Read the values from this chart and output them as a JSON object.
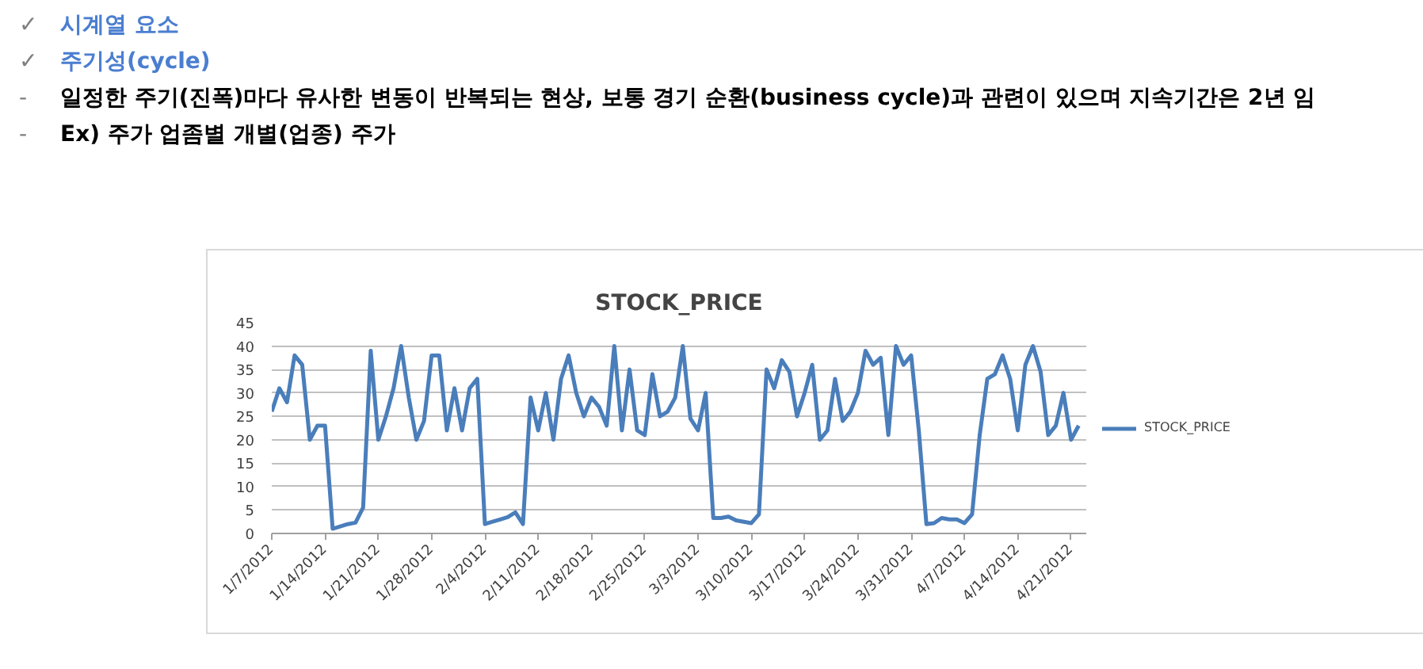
{
  "chart_data": {
    "type": "line",
    "title": "STOCK_PRICE",
    "annotations": [
      "✓ 시계열 요소",
      "✓ 주기성(cycle)",
      "- 일정한 주기(진폭)마다 유사한 변동이 반복되는 현상, 보통 경기 순환(business cycle)과 관련이 있으며 지속기간은 2년 임",
      "- Ex) 주가 업좀별 개별(업종) 주가"
    ],
    "x": [
      "2012-01-07",
      "2012-01-08",
      "2012-01-09",
      "2012-01-10",
      "2012-01-11",
      "2012-01-12",
      "2012-01-13",
      "2012-01-14",
      "2012-01-15",
      "2012-01-16",
      "2012-01-17",
      "2012-01-18",
      "2012-01-19",
      "2012-01-20",
      "2012-01-21",
      "2012-01-22",
      "2012-01-23",
      "2012-01-24",
      "2012-01-25",
      "2012-01-26",
      "2012-01-27",
      "2012-01-28",
      "2012-01-29",
      "2012-01-30",
      "2012-01-31",
      "2012-02-01",
      "2012-02-02",
      "2012-02-03",
      "2012-02-04",
      "2012-02-05",
      "2012-02-06",
      "2012-02-07",
      "2012-02-08",
      "2012-02-09",
      "2012-02-10",
      "2012-02-11",
      "2012-02-12",
      "2012-02-13",
      "2012-02-14",
      "2012-02-15",
      "2012-02-16",
      "2012-02-17",
      "2012-02-18",
      "2012-02-19",
      "2012-02-20",
      "2012-02-21",
      "2012-02-22",
      "2012-02-23",
      "2012-02-24",
      "2012-02-25",
      "2012-02-26",
      "2012-02-27",
      "2012-02-28",
      "2012-02-29",
      "2012-03-01",
      "2012-03-02",
      "2012-03-03",
      "2012-03-04",
      "2012-03-05",
      "2012-03-06",
      "2012-03-07",
      "2012-03-08",
      "2012-03-09",
      "2012-03-10",
      "2012-03-11",
      "2012-03-12",
      "2012-03-13",
      "2012-03-14",
      "2012-03-15",
      "2012-03-16",
      "2012-03-17",
      "2012-03-18",
      "2012-03-19",
      "2012-03-20",
      "2012-03-21",
      "2012-03-22",
      "2012-03-23",
      "2012-03-24",
      "2012-03-25",
      "2012-03-26",
      "2012-03-27",
      "2012-03-28",
      "2012-03-29",
      "2012-03-30",
      "2012-03-31",
      "2012-04-01",
      "2012-04-02",
      "2012-04-03",
      "2012-04-04",
      "2012-04-05",
      "2012-04-06",
      "2012-04-07",
      "2012-04-08",
      "2012-04-09",
      "2012-04-10",
      "2012-04-11",
      "2012-04-12",
      "2012-04-13",
      "2012-04-14",
      "2012-04-15",
      "2012-04-16",
      "2012-04-17",
      "2012-04-18",
      "2012-04-19",
      "2012-04-20",
      "2012-04-21",
      "2012-04-22"
    ],
    "series": [
      {
        "name": "STOCK_PRICE",
        "color": "#4a7ebb",
        "values": [
          26,
          31,
          28,
          38,
          36,
          20,
          23,
          23,
          1,
          1.5,
          2,
          2.3,
          5.5,
          39,
          20,
          25,
          31,
          40,
          29,
          20,
          24,
          38,
          38,
          22,
          31,
          22,
          31,
          33,
          2,
          2.5,
          3,
          3.5,
          4.5,
          2,
          29,
          22,
          30,
          20,
          33,
          38,
          30,
          25,
          29,
          27,
          23,
          40,
          22,
          35,
          22,
          21,
          34,
          25,
          26,
          29,
          40,
          24.5,
          22,
          30,
          3.3,
          3.3,
          3.6,
          2.8,
          2.5,
          2.2,
          4.1,
          35,
          31,
          37,
          34.5,
          25,
          30,
          36,
          20,
          22,
          33,
          24,
          26,
          30,
          39,
          36,
          37.5,
          21,
          40,
          36,
          38,
          22,
          2,
          2.2,
          3.3,
          3,
          3,
          2.2,
          4.1,
          21,
          33,
          34,
          38,
          33,
          22,
          36,
          40,
          34.5,
          21,
          23,
          30,
          20,
          23
        ]
      }
    ],
    "xlim": [
      "2012-01-07",
      "2012-04-23"
    ],
    "xticks": [
      {
        "value": "2012-01-07",
        "label": "1/7/2012"
      },
      {
        "value": "2012-01-14",
        "label": "1/14/2012"
      },
      {
        "value": "2012-01-21",
        "label": "1/21/2012"
      },
      {
        "value": "2012-01-28",
        "label": "1/28/2012"
      },
      {
        "value": "2012-02-04",
        "label": "2/4/2012"
      },
      {
        "value": "2012-02-11",
        "label": "2/11/2012"
      },
      {
        "value": "2012-02-18",
        "label": "2/18/2012"
      },
      {
        "value": "2012-02-25",
        "label": "2/25/2012"
      },
      {
        "value": "2012-03-03",
        "label": "3/3/2012"
      },
      {
        "value": "2012-03-10",
        "label": "3/10/2012"
      },
      {
        "value": "2012-03-17",
        "label": "3/17/2012"
      },
      {
        "value": "2012-03-24",
        "label": "3/24/2012"
      },
      {
        "value": "2012-03-31",
        "label": "3/31/2012"
      },
      {
        "value": "2012-04-07",
        "label": "4/7/2012"
      },
      {
        "value": "2012-04-14",
        "label": "4/14/2012"
      },
      {
        "value": "2012-04-21",
        "label": "4/21/2012"
      }
    ],
    "ylim": [
      0,
      45
    ],
    "yticks": [
      0,
      5,
      10,
      15,
      20,
      25,
      30,
      35,
      40,
      45
    ],
    "grid": "y",
    "legend": "right"
  }
}
